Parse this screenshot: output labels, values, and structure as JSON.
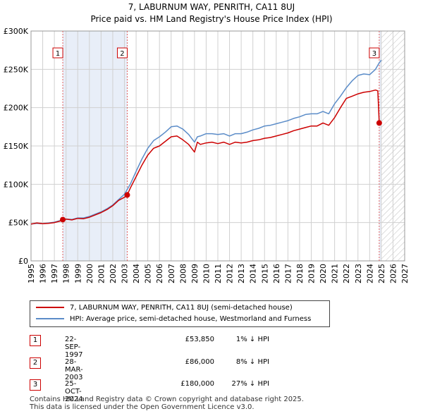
{
  "header": {
    "title": "7, LABURNUM WAY, PENRITH, CA11 8UJ",
    "subtitle": "Price paid vs. HM Land Registry's House Price Index (HPI)"
  },
  "chart_data": {
    "type": "line",
    "title": "7, LABURNUM WAY, PENRITH, CA11 8UJ",
    "subtitle": "Price paid vs. HM Land Registry's House Price Index (HPI)",
    "xlim": [
      1995,
      2027
    ],
    "ylim": [
      0,
      300000
    ],
    "x_ticks": [
      1995,
      1996,
      1997,
      1998,
      1999,
      2000,
      2001,
      2002,
      2003,
      2004,
      2005,
      2006,
      2007,
      2008,
      2009,
      2010,
      2011,
      2012,
      2013,
      2014,
      2015,
      2016,
      2017,
      2018,
      2019,
      2020,
      2021,
      2022,
      2023,
      2024,
      2025,
      2026,
      2027
    ],
    "y_ticks": [
      0,
      50000,
      100000,
      150000,
      200000,
      250000,
      300000
    ],
    "y_tick_labels": [
      "£0",
      "£50K",
      "£100K",
      "£150K",
      "£200K",
      "£250K",
      "£300K"
    ],
    "grid": true,
    "hatched_future_from": 2025.0,
    "series": [
      {
        "name": "7, LABURNUM WAY, PENRITH, CA11 8UJ (semi-detached house)",
        "color": "#cc0000",
        "x": [
          1995.0,
          1995.5,
          1996.0,
          1996.5,
          1997.0,
          1997.5,
          1997.72,
          1998.0,
          1998.5,
          1999.0,
          1999.5,
          2000.0,
          2000.5,
          2001.0,
          2001.5,
          2002.0,
          2002.5,
          2003.0,
          2003.24,
          2003.5,
          2004.0,
          2004.5,
          2005.0,
          2005.5,
          2006.0,
          2006.5,
          2007.0,
          2007.5,
          2008.0,
          2008.5,
          2009.0,
          2009.25,
          2009.5,
          2010.0,
          2010.5,
          2011.0,
          2011.5,
          2012.0,
          2012.5,
          2013.0,
          2013.5,
          2014.0,
          2014.5,
          2015.0,
          2015.5,
          2016.0,
          2016.5,
          2017.0,
          2017.5,
          2018.0,
          2018.5,
          2019.0,
          2019.5,
          2020.0,
          2020.5,
          2021.0,
          2021.5,
          2022.0,
          2022.5,
          2023.0,
          2023.5,
          2024.0,
          2024.5,
          2024.7,
          2024.82,
          2025.0
        ],
        "values": [
          48000,
          49500,
          48500,
          49000,
          50000,
          52000,
          53850,
          54500,
          53500,
          55500,
          55000,
          57000,
          60000,
          63000,
          67000,
          72000,
          79000,
          83000,
          86000,
          95000,
          110000,
          125000,
          138000,
          147000,
          150000,
          156000,
          162000,
          163000,
          158000,
          152000,
          142000,
          155000,
          152000,
          154000,
          155000,
          153000,
          155000,
          152000,
          155000,
          154000,
          155000,
          157000,
          158000,
          160000,
          161000,
          163000,
          165000,
          167000,
          170000,
          172000,
          174000,
          176000,
          176000,
          180000,
          177000,
          187000,
          200000,
          212000,
          215000,
          218000,
          220000,
          221000,
          223000,
          222000,
          180000,
          180000
        ]
      },
      {
        "name": "HPI: Average price, semi-detached house, Westmorland and Furness",
        "color": "#5b8cc8",
        "x": [
          1995.0,
          1995.5,
          1996.0,
          1996.5,
          1997.0,
          1997.5,
          1998.0,
          1998.5,
          1999.0,
          1999.5,
          2000.0,
          2000.5,
          2001.0,
          2001.5,
          2002.0,
          2002.5,
          2003.0,
          2003.5,
          2004.0,
          2004.5,
          2005.0,
          2005.5,
          2006.0,
          2006.5,
          2007.0,
          2007.5,
          2008.0,
          2008.5,
          2009.0,
          2009.25,
          2009.5,
          2010.0,
          2010.5,
          2011.0,
          2011.5,
          2012.0,
          2012.5,
          2013.0,
          2013.5,
          2014.0,
          2014.5,
          2015.0,
          2015.5,
          2016.0,
          2016.5,
          2017.0,
          2017.5,
          2018.0,
          2018.5,
          2019.0,
          2019.5,
          2020.0,
          2020.5,
          2021.0,
          2021.5,
          2022.0,
          2022.5,
          2023.0,
          2023.5,
          2024.0,
          2024.5,
          2024.8,
          2025.0
        ],
        "values": [
          48000,
          49000,
          48500,
          49500,
          50500,
          52500,
          54500,
          54000,
          56000,
          56000,
          58000,
          61000,
          64000,
          68000,
          73000,
          80000,
          87000,
          100000,
          117000,
          133000,
          147000,
          157000,
          162000,
          168000,
          175000,
          176000,
          172000,
          165000,
          155000,
          162000,
          163000,
          166000,
          166000,
          165000,
          166000,
          163000,
          166000,
          166000,
          168000,
          171000,
          173000,
          176000,
          177000,
          179000,
          181000,
          183000,
          186000,
          188000,
          191000,
          192000,
          192000,
          195000,
          192000,
          205000,
          215000,
          226000,
          235000,
          242000,
          244000,
          243000,
          250000,
          258000,
          262000
        ]
      }
    ],
    "sales": [
      {
        "label": "1",
        "x": 1997.72,
        "price": 53850
      },
      {
        "label": "2",
        "x": 2003.24,
        "price": 86000
      },
      {
        "label": "3",
        "x": 2024.82,
        "price": 180000
      }
    ]
  },
  "legend": {
    "property_label": "7, LABURNUM WAY, PENRITH, CA11 8UJ (semi-detached house)",
    "hpi_label": "HPI: Average price, semi-detached house, Westmorland and Furness"
  },
  "transactions": [
    {
      "num": "1",
      "date": "22-SEP-1997",
      "price": "£53,850",
      "hpi": "1% ↓ HPI"
    },
    {
      "num": "2",
      "date": "28-MAR-2003",
      "price": "£86,000",
      "hpi": "8% ↓ HPI"
    },
    {
      "num": "3",
      "date": "25-OCT-2024",
      "price": "£180,000",
      "hpi": "27% ↓ HPI"
    }
  ],
  "footer": {
    "line1": "Contains HM Land Registry data © Crown copyright and database right 2025.",
    "line2": "This data is licensed under the Open Government Licence v3.0."
  }
}
